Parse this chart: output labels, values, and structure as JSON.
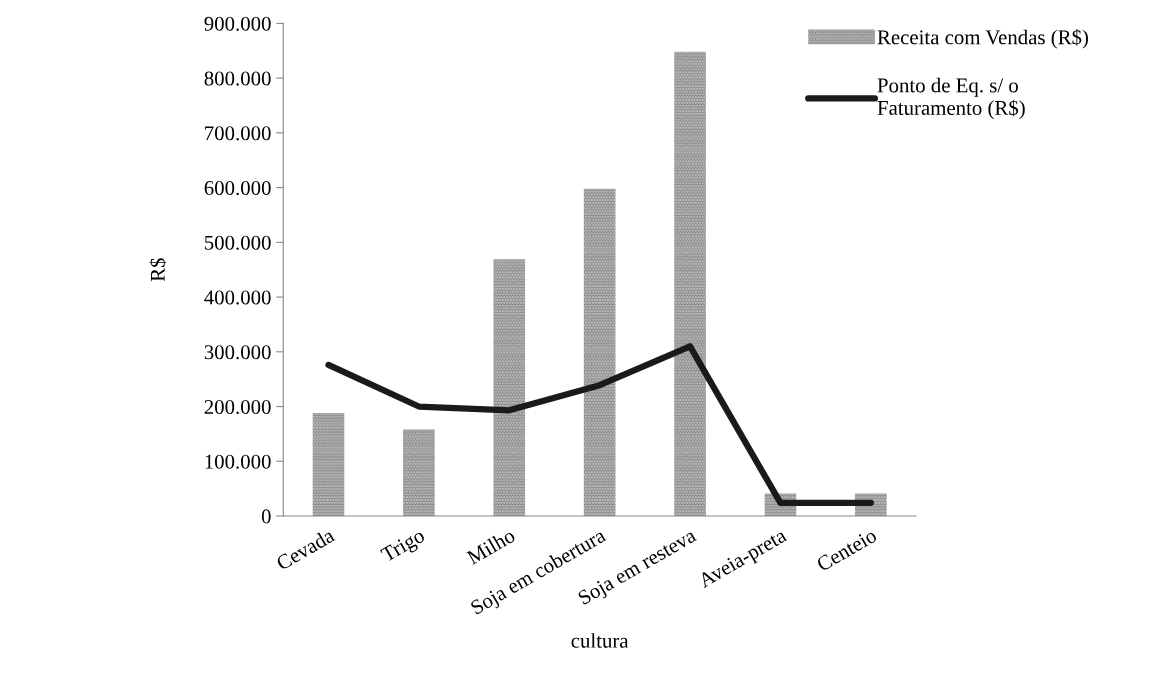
{
  "chart_data": {
    "type": "bar",
    "xlabel": "cultura",
    "ylabel": "R$",
    "categories": [
      "Cevada",
      "Trigo",
      "Milho",
      "Soja em cobertura",
      "Soja em resteva",
      "Aveia-preta",
      "Centeio"
    ],
    "series": [
      {
        "name": "Receita com Vendas (R$)",
        "color": "#8c8c8c",
        "values": [
          188000,
          158000,
          469000,
          598000,
          848000,
          41000,
          41000
        ]
      },
      {
        "name": "Ponto de Eq. s/ o\nFaturamento (R$)",
        "type": "line",
        "color": "#1a1a1a",
        "values": [
          276000,
          200000,
          193000,
          239000,
          310000,
          24000,
          24000
        ]
      }
    ],
    "ylim": [
      0,
      900000
    ],
    "yticks": [
      {
        "value": 0,
        "label": "0"
      },
      {
        "value": 100000,
        "label": "100.000"
      },
      {
        "value": 200000,
        "label": "200.000"
      },
      {
        "value": 300000,
        "label": "300.000"
      },
      {
        "value": 400000,
        "label": "400.000"
      },
      {
        "value": 500000,
        "label": "500.000"
      },
      {
        "value": 600000,
        "label": "600.000"
      },
      {
        "value": 700000,
        "label": "700.000"
      },
      {
        "value": 800000,
        "label": "800.000"
      },
      {
        "value": 900000,
        "label": "900.000"
      }
    ],
    "grid": false,
    "legend": "top right",
    "marker": "none"
  }
}
